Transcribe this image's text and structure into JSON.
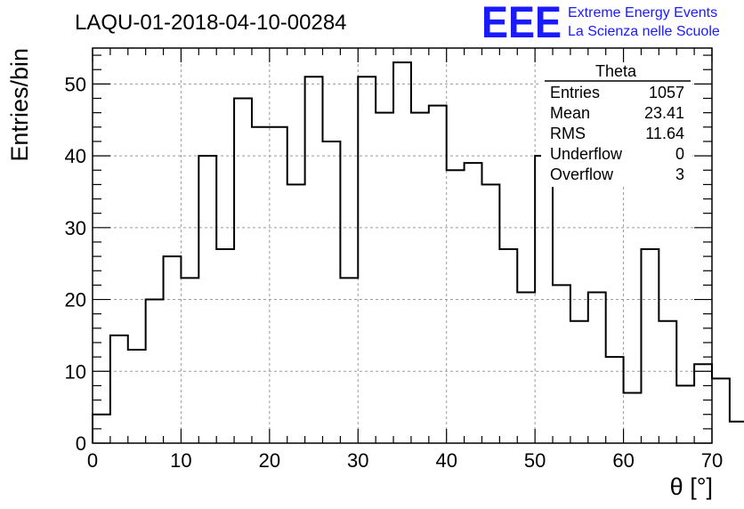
{
  "chart_data": {
    "type": "histogram",
    "title": "LAQU-01-2018-04-10-00284",
    "xlabel": "θ [°]",
    "ylabel": "Entries/bin",
    "xlim": [
      0,
      70
    ],
    "ylim": [
      0,
      55
    ],
    "bin_width": 2,
    "bin_start": 0,
    "values": [
      4,
      15,
      13,
      20,
      26,
      23,
      40,
      27,
      48,
      44,
      44,
      36,
      51,
      42,
      23,
      51,
      46,
      53,
      46,
      47,
      38,
      39,
      36,
      27,
      21,
      40,
      22,
      17,
      21,
      12,
      7,
      27,
      17,
      8,
      11,
      9,
      3,
      0
    ],
    "x_ticks": [
      0,
      10,
      20,
      30,
      40,
      50,
      60,
      70
    ],
    "y_ticks": [
      0,
      10,
      20,
      30,
      40,
      50
    ],
    "grid": true
  },
  "stats_box": {
    "name": "Theta",
    "rows": [
      {
        "label": "Entries",
        "value": "1057"
      },
      {
        "label": "Mean",
        "value": "23.41"
      },
      {
        "label": "RMS",
        "value": "11.64"
      },
      {
        "label": "Underflow",
        "value": "0"
      },
      {
        "label": "Overflow",
        "value": "3"
      }
    ]
  },
  "logo": {
    "mark": "EEE",
    "line1": "Extreme Energy Events",
    "line2": "La Scienza nelle Scuole",
    "color": "#1a1aff"
  }
}
